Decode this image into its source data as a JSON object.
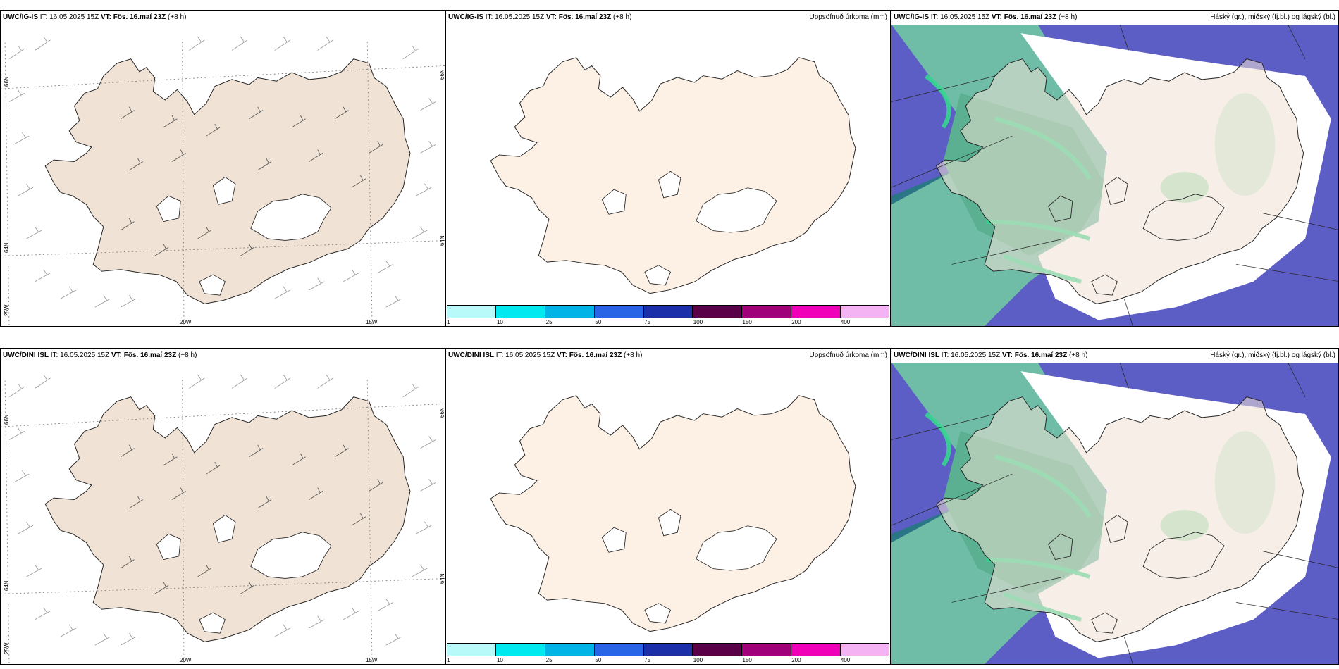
{
  "rows": [
    {
      "model": "UWC/IG-IS",
      "it": "IT: 16.05.2025 15Z",
      "vt": "VT: Fös. 16.maí 23Z",
      "lead": "(+8 h)"
    },
    {
      "model": "UWC/DINI ISL",
      "it": "IT: 16.05.2025 15Z",
      "vt": "VT: Fös. 16.maí 23Z",
      "lead": "(+8 h)"
    }
  ],
  "precip_title": "Uppsöfnuð úrkoma (mm)",
  "cloud_title": "Háský (gr.), miðský (fj.bl.) og lágský (bl.)",
  "axis_labels": {
    "lat_top": "66N",
    "lat_bottom": "64N",
    "lon_left": "25W",
    "lon_mid": "20W",
    "lon_right": "15W"
  },
  "colorbar": {
    "ticks": [
      "1",
      "10",
      "25",
      "50",
      "75",
      "100",
      "150",
      "200",
      "400"
    ],
    "colors": [
      "#b8fafa",
      "#00e8f0",
      "#00b4e8",
      "#2a64e6",
      "#1c2ea8",
      "#5a0048",
      "#a0007a",
      "#f000b8",
      "#f4b4f4"
    ]
  },
  "colors": {
    "land_wind": "#f0e2d4",
    "land_precip": "#fdf0e4",
    "high_cloud": "#2a7686",
    "mid_cloud": "#6fbda7",
    "low_cloud": "#5d5dc6",
    "mixed_cloud": "#5ab090",
    "bright_edge": "#35d690"
  }
}
